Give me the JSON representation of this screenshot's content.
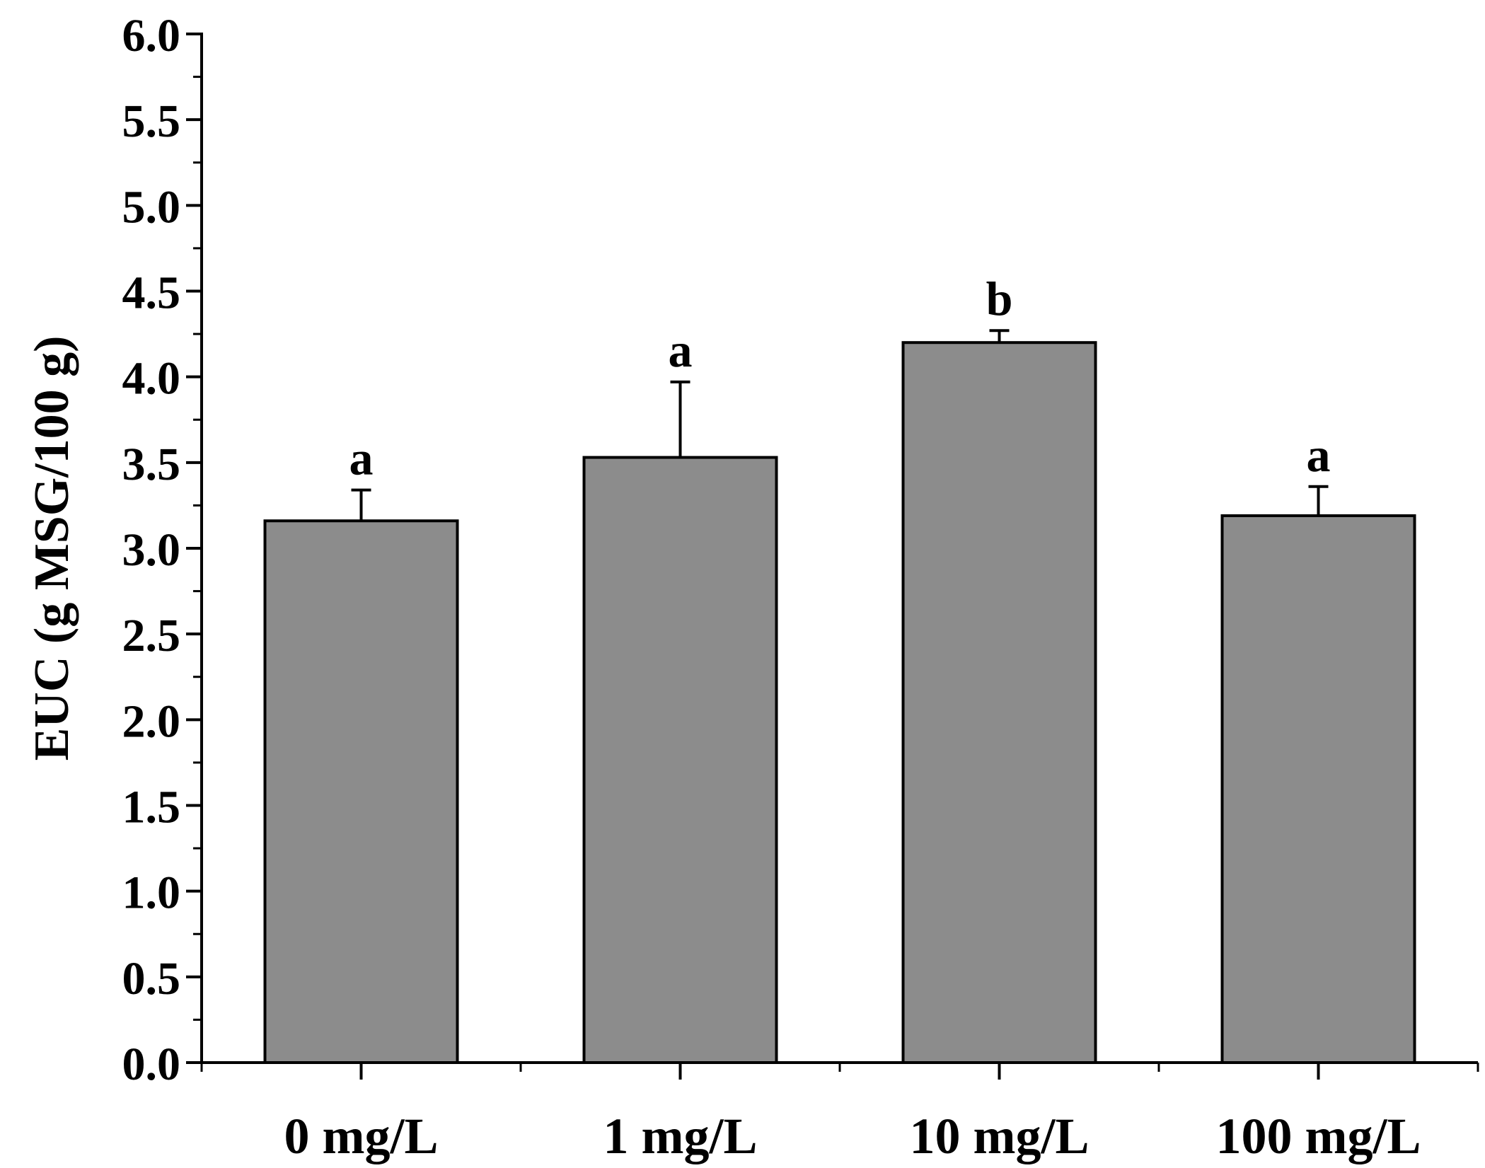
{
  "chart_data": {
    "type": "bar",
    "title": "",
    "xlabel": "",
    "ylabel": "EUC (g MSG/100 g)",
    "ylim": [
      0,
      6
    ],
    "yticks": [
      "0.0",
      "0.5",
      "1.0",
      "1.5",
      "2.0",
      "2.5",
      "3.0",
      "3.5",
      "4.0",
      "4.5",
      "5.0",
      "5.5",
      "6.0"
    ],
    "ytick_step": 0.5,
    "yminor_step": 0.25,
    "categories": [
      "0 mg/L",
      "1 mg/L",
      "10 mg/L",
      "100 mg/L"
    ],
    "values": [
      3.16,
      3.53,
      4.2,
      3.19
    ],
    "errors": [
      0.18,
      0.44,
      0.07,
      0.17
    ],
    "significance": [
      "a",
      "a",
      "b",
      "a"
    ],
    "bar_color": "#8c8c8c",
    "edge_color": "#000000",
    "grid": false,
    "legend": "none"
  }
}
